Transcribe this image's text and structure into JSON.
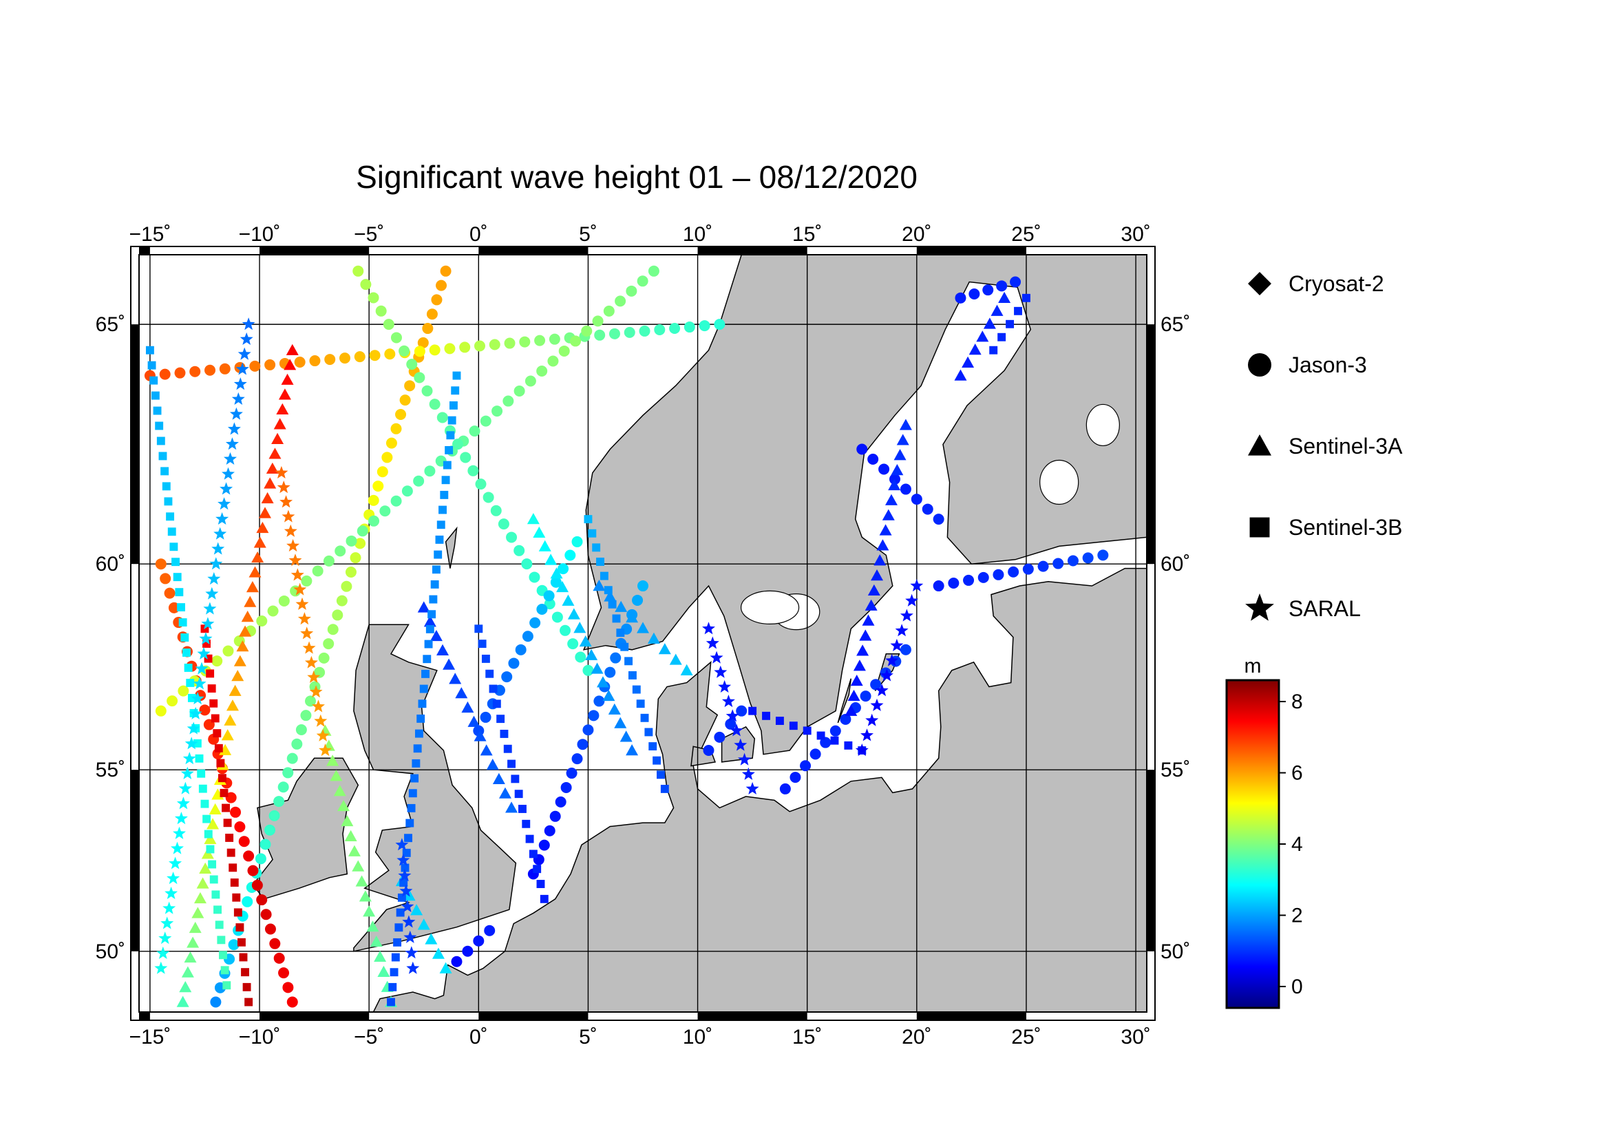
{
  "title": "Significant wave height 01 – 08/12/2020",
  "map": {
    "lon_range": [
      -15.5,
      30.5
    ],
    "lat_range": [
      48.2,
      66.3
    ],
    "lon_ticks": [
      {
        "v": -15,
        "label": "−15˚"
      },
      {
        "v": -10,
        "label": "−10˚"
      },
      {
        "v": -5,
        "label": "−5˚"
      },
      {
        "v": 0,
        "label": "0˚"
      },
      {
        "v": 5,
        "label": "5˚"
      },
      {
        "v": 10,
        "label": "10˚"
      },
      {
        "v": 15,
        "label": "15˚"
      },
      {
        "v": 20,
        "label": "20˚"
      },
      {
        "v": 25,
        "label": "25˚"
      },
      {
        "v": 30,
        "label": "30˚"
      }
    ],
    "lat_ticks": [
      {
        "v": 50,
        "label": "50˚"
      },
      {
        "v": 55,
        "label": "55˚"
      },
      {
        "v": 60,
        "label": "60˚"
      },
      {
        "v": 65,
        "label": "65˚"
      }
    ],
    "land_color": "#bebebe",
    "sea_color": "#ffffff",
    "grid": true
  },
  "legend": {
    "items": [
      {
        "symbol": "diamond",
        "label": "Cryosat-2"
      },
      {
        "symbol": "circle",
        "label": "Jason-3"
      },
      {
        "symbol": "triangle",
        "label": "Sentinel-3A"
      },
      {
        "symbol": "square",
        "label": "Sentinel-3B"
      },
      {
        "symbol": "star",
        "label": "SARAL"
      }
    ]
  },
  "colorbar": {
    "unit": "m",
    "min": -0.6,
    "max": 8.6,
    "ticks": [
      {
        "v": 0,
        "label": "0"
      },
      {
        "v": 2,
        "label": "2"
      },
      {
        "v": 4,
        "label": "4"
      },
      {
        "v": 6,
        "label": "6"
      },
      {
        "v": 8,
        "label": "8"
      }
    ],
    "colormap": "jet"
  },
  "chart_data": {
    "type": "scatter",
    "title": "Significant wave height 01 – 08/12/2020",
    "units": "m",
    "series": [
      {
        "name": "Jason-3",
        "symbol": "circle",
        "tracks": [
          {
            "from": [
              -12.0,
              48.5
            ],
            "to": [
              -1.5,
              66.0
            ],
            "hs": [
              1.8,
              3.0,
              3.5,
              4.0,
              4.5,
              5.2,
              5.8,
              6.0
            ]
          },
          {
            "from": [
              -8.5,
              48.5
            ],
            "to": [
              -14.5,
              60.0
            ],
            "hs": [
              7.5,
              7.8,
              7.2,
              7.0,
              6.5
            ]
          },
          {
            "from": [
              -15.0,
              64.0
            ],
            "to": [
              11.0,
              65.0
            ],
            "hs": [
              6.8,
              6.5,
              6.0,
              5.5,
              4.5,
              4.0,
              3.5,
              3.2
            ]
          },
          {
            "from": [
              -14.5,
              56.5
            ],
            "to": [
              8.0,
              66.0
            ],
            "hs": [
              5.0,
              4.5,
              4.0,
              3.6,
              3.8,
              4.2,
              3.9
            ]
          },
          {
            "from": [
              -5.5,
              66.0
            ],
            "to": [
              5.0,
              57.5
            ],
            "hs": [
              4.5,
              4.0,
              3.6,
              3.5,
              3.2,
              3.3
            ]
          },
          {
            "from": [
              0.0,
              56.0
            ],
            "to": [
              4.5,
              60.5
            ],
            "hs": [
              1.2,
              1.5,
              1.8,
              2.5,
              3.0
            ]
          },
          {
            "from": [
              2.5,
              52.2
            ],
            "to": [
              7.5,
              59.5
            ],
            "hs": [
              0.6,
              0.8,
              1.2,
              1.6,
              2.2
            ]
          },
          {
            "from": [
              -1.0,
              49.7
            ],
            "to": [
              0.5,
              50.6
            ],
            "hs": [
              0.6,
              0.7,
              0.8
            ]
          },
          {
            "from": [
              14.0,
              54.5
            ],
            "to": [
              19.5,
              58.0
            ],
            "hs": [
              0.8,
              0.9,
              1.0,
              1.1
            ]
          },
          {
            "from": [
              17.5,
              62.5
            ],
            "to": [
              21.0,
              61.0
            ],
            "hs": [
              0.7,
              0.8,
              0.9
            ]
          },
          {
            "from": [
              21.0,
              59.5
            ],
            "to": [
              28.5,
              60.2
            ],
            "hs": [
              0.8,
              0.9,
              1.0,
              1.2
            ]
          },
          {
            "from": [
              22.0,
              65.5
            ],
            "to": [
              24.5,
              65.8
            ],
            "hs": [
              0.8,
              0.9
            ]
          },
          {
            "from": [
              10.5,
              55.5
            ],
            "to": [
              12.0,
              56.5
            ],
            "hs": [
              0.9,
              1.0
            ]
          }
        ]
      },
      {
        "name": "Sentinel-3A",
        "symbol": "triangle",
        "tracks": [
          {
            "from": [
              -13.5,
              48.5
            ],
            "to": [
              -8.5,
              64.5
            ],
            "hs": [
              3.5,
              4.5,
              5.5,
              6.5,
              7.0,
              7.5
            ]
          },
          {
            "from": [
              -4.0,
              48.5
            ],
            "to": [
              -7.0,
              56.0
            ],
            "hs": [
              3.5,
              4.0,
              4.2
            ]
          },
          {
            "from": [
              -2.5,
              59.0
            ],
            "to": [
              1.5,
              54.0
            ],
            "hs": [
              1.0,
              1.2,
              1.5
            ]
          },
          {
            "from": [
              2.5,
              61.0
            ],
            "to": [
              7.0,
              55.5
            ],
            "hs": [
              3.0,
              2.5,
              2.0,
              1.6
            ]
          },
          {
            "from": [
              5.5,
              59.5
            ],
            "to": [
              9.5,
              57.5
            ],
            "hs": [
              1.8,
              2.0,
              2.4
            ]
          },
          {
            "from": [
              17.0,
              56.5
            ],
            "to": [
              19.5,
              63.0
            ],
            "hs": [
              0.7,
              0.8,
              0.9,
              1.0
            ]
          },
          {
            "from": [
              22.0,
              64.0
            ],
            "to": [
              24.0,
              65.5
            ],
            "hs": [
              0.8,
              0.9
            ]
          },
          {
            "from": [
              -3.5,
              52.0
            ],
            "to": [
              -1.5,
              49.5
            ],
            "hs": [
              2.4,
              2.6
            ]
          }
        ]
      },
      {
        "name": "Sentinel-3B",
        "symbol": "square",
        "tracks": [
          {
            "from": [
              -15.0,
              64.5
            ],
            "to": [
              -11.5,
              49.0
            ],
            "hs": [
              2.0,
              2.5,
              3.0,
              3.5
            ]
          },
          {
            "from": [
              -12.5,
              58.5
            ],
            "to": [
              -10.5,
              48.5
            ],
            "hs": [
              7.5,
              7.8,
              8.0
            ]
          },
          {
            "from": [
              -1.0,
              64.0
            ],
            "to": [
              -4.0,
              48.5
            ],
            "hs": [
              2.0,
              1.8,
              1.5,
              1.2
            ]
          },
          {
            "from": [
              0.0,
              58.5
            ],
            "to": [
              3.0,
              51.5
            ],
            "hs": [
              1.2,
              1.0,
              0.8
            ]
          },
          {
            "from": [
              5.0,
              61.0
            ],
            "to": [
              8.5,
              54.5
            ],
            "hs": [
              2.2,
              1.8,
              1.5,
              1.2
            ]
          },
          {
            "from": [
              12.5,
              56.5
            ],
            "to": [
              17.5,
              55.5
            ],
            "hs": [
              0.7,
              0.8
            ]
          },
          {
            "from": [
              23.5,
              64.5
            ],
            "to": [
              25.0,
              65.5
            ],
            "hs": [
              0.9
            ]
          }
        ]
      },
      {
        "name": "SARAL",
        "symbol": "star",
        "tracks": [
          {
            "from": [
              -10.5,
              65.0
            ],
            "to": [
              -14.5,
              49.5
            ],
            "hs": [
              1.5,
              2.0,
              2.5,
              2.8,
              3.0
            ]
          },
          {
            "from": [
              -9.0,
              62.0
            ],
            "to": [
              -7.0,
              55.5
            ],
            "hs": [
              6.5,
              6.0
            ]
          },
          {
            "from": [
              -3.5,
              53.0
            ],
            "to": [
              -3.0,
              49.5
            ],
            "hs": [
              1.2,
              1.0
            ]
          },
          {
            "from": [
              17.5,
              55.5
            ],
            "to": [
              20.0,
              59.5
            ],
            "hs": [
              0.5,
              0.6,
              0.7
            ]
          },
          {
            "from": [
              10.5,
              58.5
            ],
            "to": [
              12.5,
              54.5
            ],
            "hs": [
              0.7,
              0.8
            ]
          }
        ]
      }
    ]
  }
}
